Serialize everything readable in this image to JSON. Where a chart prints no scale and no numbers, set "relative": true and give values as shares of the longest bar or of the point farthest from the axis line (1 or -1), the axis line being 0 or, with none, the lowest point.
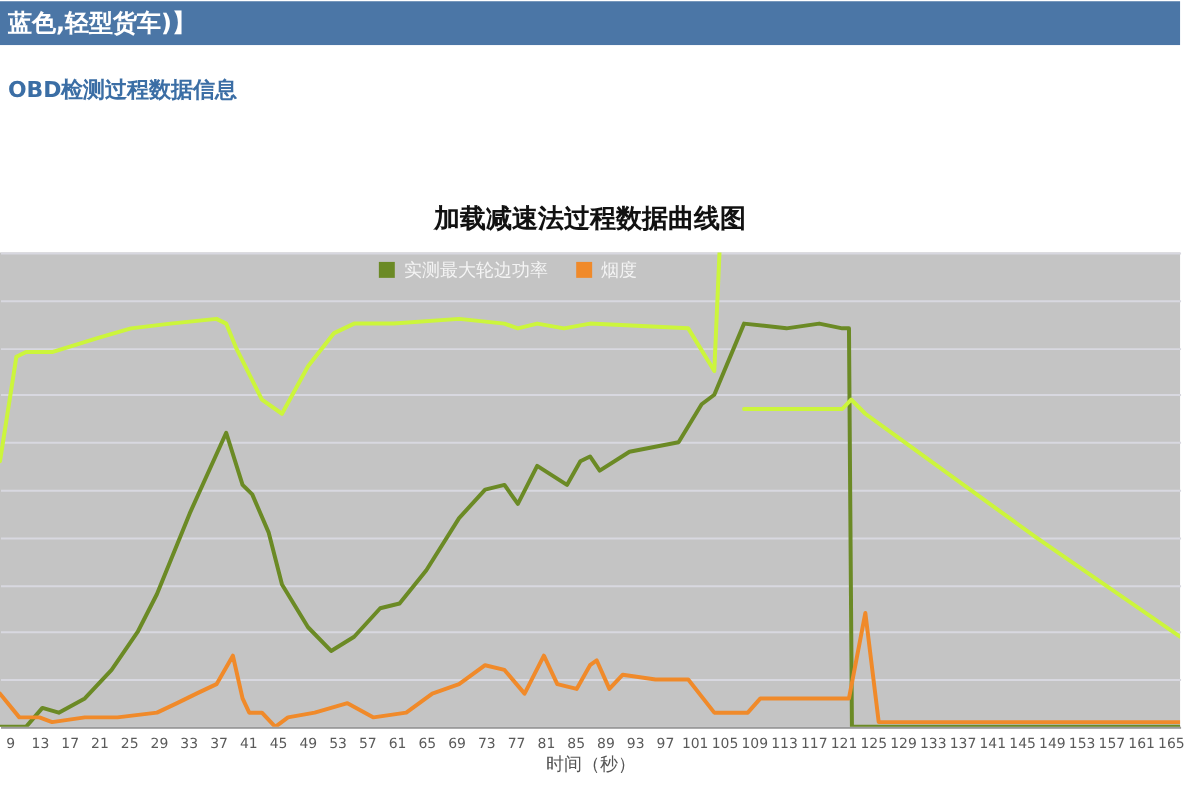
{
  "chart_data": {
    "type": "line",
    "title": "加载减速法过程数据曲线图",
    "xlabel": "时间（秒）",
    "annotations": [
      "蓝色,轻型货车)】",
      "OBD检测过程数据信息"
    ],
    "relative": true,
    "grid": "y",
    "legend": "top",
    "xlim": [
      7.7,
      166.3
    ],
    "xticks": [
      9,
      13,
      17,
      21,
      25,
      29,
      33,
      37,
      41,
      45,
      49,
      53,
      57,
      61,
      65,
      69,
      73,
      77,
      81,
      85,
      89,
      93,
      97,
      101,
      105,
      109,
      113,
      117,
      121,
      125,
      129,
      133,
      137,
      141,
      145,
      149,
      153,
      157,
      161,
      165
    ],
    "series": [
      {
        "name": "实测最大轮边功率",
        "color": "#6b8a25",
        "x": [
          7.7,
          11.2,
          13.4,
          15.6,
          19.1,
          22.7,
          26.2,
          28.8,
          33.2,
          38.1,
          40.3,
          41.6,
          43.8,
          45.6,
          49.1,
          52.2,
          55.3,
          58.8,
          61.4,
          65.0,
          69.4,
          72.9,
          75.5,
          77.3,
          79.9,
          83.9,
          85.7,
          87.0,
          88.3,
          92.3,
          98.9,
          102.0,
          103.7,
          107.7,
          113.4,
          117.8,
          120.9,
          121.8,
          122.2,
          166.3
        ],
        "values": [
          0,
          0.0,
          0.04,
          0.03,
          0.06,
          0.12,
          0.2,
          0.28,
          0.45,
          0.62,
          0.51,
          0.49,
          0.41,
          0.3,
          0.21,
          0.16,
          0.19,
          0.25,
          0.26,
          0.33,
          0.44,
          0.5,
          0.51,
          0.47,
          0.55,
          0.51,
          0.56,
          0.57,
          0.54,
          0.58,
          0.6,
          0.68,
          0.7,
          0.85,
          0.84,
          0.85,
          0.84,
          0.84,
          0,
          0
        ]
      },
      {
        "name": "烟度",
        "color": "#f08a2a",
        "x": [
          7.7,
          10.3,
          13.0,
          14.7,
          19.1,
          23.5,
          28.8,
          31.5,
          34.1,
          36.8,
          39.0,
          40.3,
          41.2,
          42.9,
          44.7,
          46.4,
          50.0,
          54.4,
          57.9,
          62.3,
          65.8,
          69.4,
          72.9,
          75.5,
          78.2,
          80.8,
          82.6,
          85.2,
          87.0,
          87.9,
          89.6,
          91.4,
          95.8,
          100.2,
          103.7,
          108.2,
          109.9,
          117.0,
          121.8,
          124.0,
          125.8,
          131.1,
          140.0,
          150.0,
          160.0,
          166.3
        ],
        "values": [
          0.07,
          0.02,
          0.02,
          0.01,
          0.02,
          0.02,
          0.03,
          0.05,
          0.07,
          0.09,
          0.15,
          0.06,
          0.03,
          0.03,
          0.0,
          0.02,
          0.03,
          0.05,
          0.02,
          0.03,
          0.07,
          0.09,
          0.13,
          0.12,
          0.07,
          0.15,
          0.09,
          0.08,
          0.13,
          0.14,
          0.08,
          0.11,
          0.1,
          0.1,
          0.03,
          0.03,
          0.06,
          0.06,
          0.06,
          0.24,
          0.01,
          0.01,
          0.01,
          0.01,
          0.01,
          0.01
        ]
      },
      {
        "color": "#ccf53c",
        "x": [
          7.7,
          9.9,
          11.2,
          14.7,
          20.9,
          25.3,
          30.6,
          36.8,
          38.1,
          39.4,
          42.9,
          45.6,
          49.1,
          52.6,
          55.3,
          60.6,
          69.4,
          75.5,
          77.3,
          79.9,
          83.5,
          87.0,
          100.2,
          103.7,
          104.4,
          106.0,
          107.7,
          120.9,
          122.1,
          124.0,
          127.5,
          146.9,
          166.3
        ],
        "values": [
          0.56,
          0.78,
          0.79,
          0.79,
          0.82,
          0.84,
          0.85,
          0.86,
          0.85,
          0.8,
          0.69,
          0.66,
          0.76,
          0.83,
          0.85,
          0.85,
          0.86,
          0.85,
          0.84,
          0.85,
          0.84,
          0.85,
          0.84,
          0.75,
          1,
          null,
          0.67,
          0.67,
          0.69,
          0.66,
          0.62,
          0.4,
          0.19
        ]
      }
    ]
  }
}
